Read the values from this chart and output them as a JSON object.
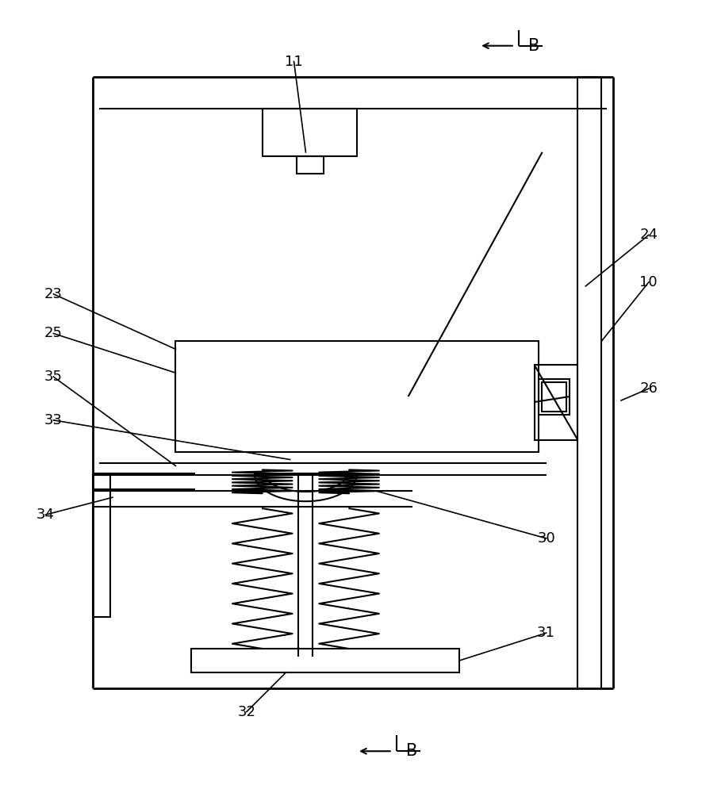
{
  "bg_color": "#ffffff",
  "line_color": "#000000",
  "lw_main": 2.0,
  "lw_thin": 1.5,
  "lw_leader": 1.2,
  "fig_width": 9.14,
  "fig_height": 10.0
}
